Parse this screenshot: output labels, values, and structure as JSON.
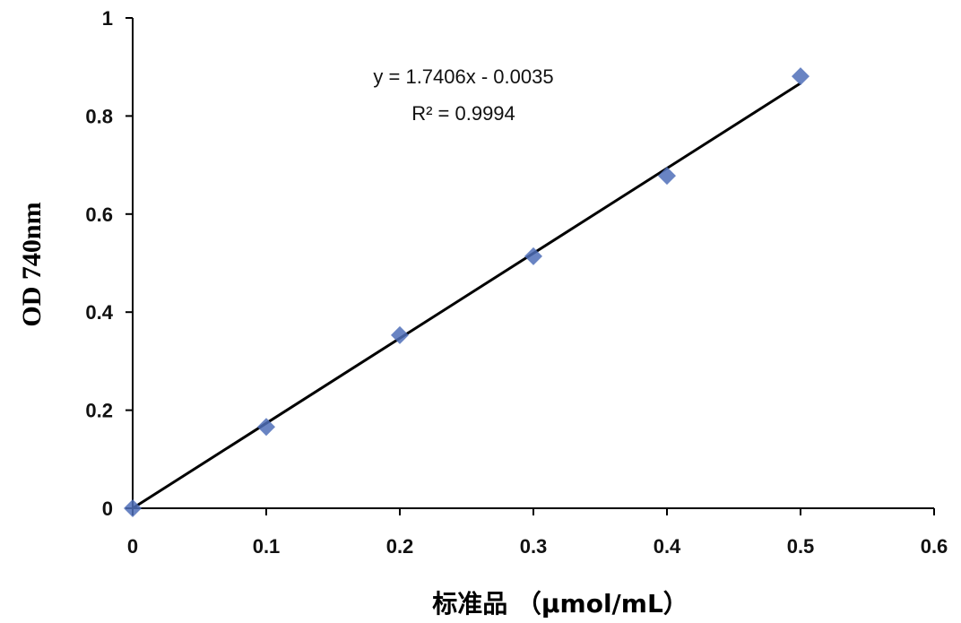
{
  "chart_data": {
    "type": "scatter",
    "xlabel": "标准品 （μmol/mL）",
    "ylabel": "OD 740nm",
    "xlim": [
      0,
      0.6
    ],
    "ylim": [
      0,
      1
    ],
    "xticks": [
      "0",
      "0.1",
      "0.2",
      "0.3",
      "0.4",
      "0.5",
      "0.6"
    ],
    "yticks": [
      "0",
      "0.2",
      "0.4",
      "0.6",
      "0.8",
      "1"
    ],
    "grid": false,
    "legend": "none",
    "series": [
      {
        "x": [
          0,
          0.1,
          0.2,
          0.3,
          0.4,
          0.5
        ],
        "y": [
          0,
          0.166,
          0.353,
          0.514,
          0.678,
          0.881
        ],
        "marker": "diamond",
        "color": "#4F6FB8"
      }
    ],
    "trendline": {
      "type": "linear",
      "slope": 1.7406,
      "intercept": -0.0035,
      "x_range": [
        0,
        0.5
      ],
      "color": "#000000"
    },
    "annotations": {
      "equation": "y = 1.7406x - 0.0035",
      "r_squared": "R² = 0.9994"
    }
  }
}
